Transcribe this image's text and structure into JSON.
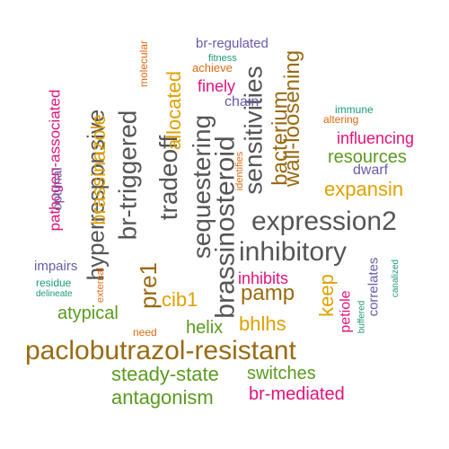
{
  "words": [
    {
      "text": "paclobutrazol-resistant",
      "color": "#9a6a12"
    },
    {
      "text": "expression2",
      "color": "#555555"
    },
    {
      "text": "inhibitory",
      "color": "#555555"
    },
    {
      "text": "brassinosteroid",
      "color": "#555555"
    },
    {
      "text": "sequestering",
      "color": "#555555"
    },
    {
      "text": "sensitivities",
      "color": "#555555"
    },
    {
      "text": "tradeoff",
      "color": "#555555"
    },
    {
      "text": "br-triggered",
      "color": "#555555"
    },
    {
      "text": "hyperresponsive",
      "color": "#555555"
    },
    {
      "text": "wall-loosening",
      "color": "#9a6a12"
    },
    {
      "text": "bacterium",
      "color": "#9a6a12"
    },
    {
      "text": "pre1",
      "color": "#9a6a12"
    },
    {
      "text": "pamp",
      "color": "#9a6a12"
    },
    {
      "text": "bhlhs",
      "color": "#e0a000"
    },
    {
      "text": "expansin",
      "color": "#e0a000"
    },
    {
      "text": "allocated",
      "color": "#e0a000"
    },
    {
      "text": "brassinazole",
      "color": "#e0a000"
    },
    {
      "text": "cib1",
      "color": "#e0a000"
    },
    {
      "text": "keep",
      "color": "#e0a000"
    },
    {
      "text": "steady-state",
      "color": "#5a9a1e"
    },
    {
      "text": "antagonism",
      "color": "#5a9a1e"
    },
    {
      "text": "switches",
      "color": "#5a9a1e"
    },
    {
      "text": "atypical",
      "color": "#5a9a1e"
    },
    {
      "text": "helix",
      "color": "#5a9a1e"
    },
    {
      "text": "resources",
      "color": "#5a9a1e"
    },
    {
      "text": "br-mediated",
      "color": "#e0137a"
    },
    {
      "text": "influencing",
      "color": "#e0137a"
    },
    {
      "text": "inhibits",
      "color": "#e0137a"
    },
    {
      "text": "pathogen-associated",
      "color": "#e0137a"
    },
    {
      "text": "finely",
      "color": "#e0137a"
    },
    {
      "text": "petiole",
      "color": "#e0137a"
    },
    {
      "text": "br-regulated",
      "color": "#6a5aa8"
    },
    {
      "text": "chain",
      "color": "#6a5aa8"
    },
    {
      "text": "dwarf",
      "color": "#6a5aa8"
    },
    {
      "text": "impairs",
      "color": "#6a5aa8"
    },
    {
      "text": "optimal",
      "color": "#6a5aa8"
    },
    {
      "text": "correlates",
      "color": "#6a5aa8"
    },
    {
      "text": "achieve",
      "color": "#e06a10"
    },
    {
      "text": "molecular",
      "color": "#e06a10"
    },
    {
      "text": "identifies",
      "color": "#e06a10"
    },
    {
      "text": "need",
      "color": "#e06a10"
    },
    {
      "text": "external",
      "color": "#e06a10"
    },
    {
      "text": "altering",
      "color": "#e06a10"
    },
    {
      "text": "fitness",
      "color": "#1a9a78"
    },
    {
      "text": "immune",
      "color": "#1a9a78"
    },
    {
      "text": "residue",
      "color": "#1a9a78"
    },
    {
      "text": "delineate",
      "color": "#1a9a78"
    },
    {
      "text": "buffered",
      "color": "#1a9a78"
    },
    {
      "text": "canalized",
      "color": "#1a9a78"
    }
  ]
}
